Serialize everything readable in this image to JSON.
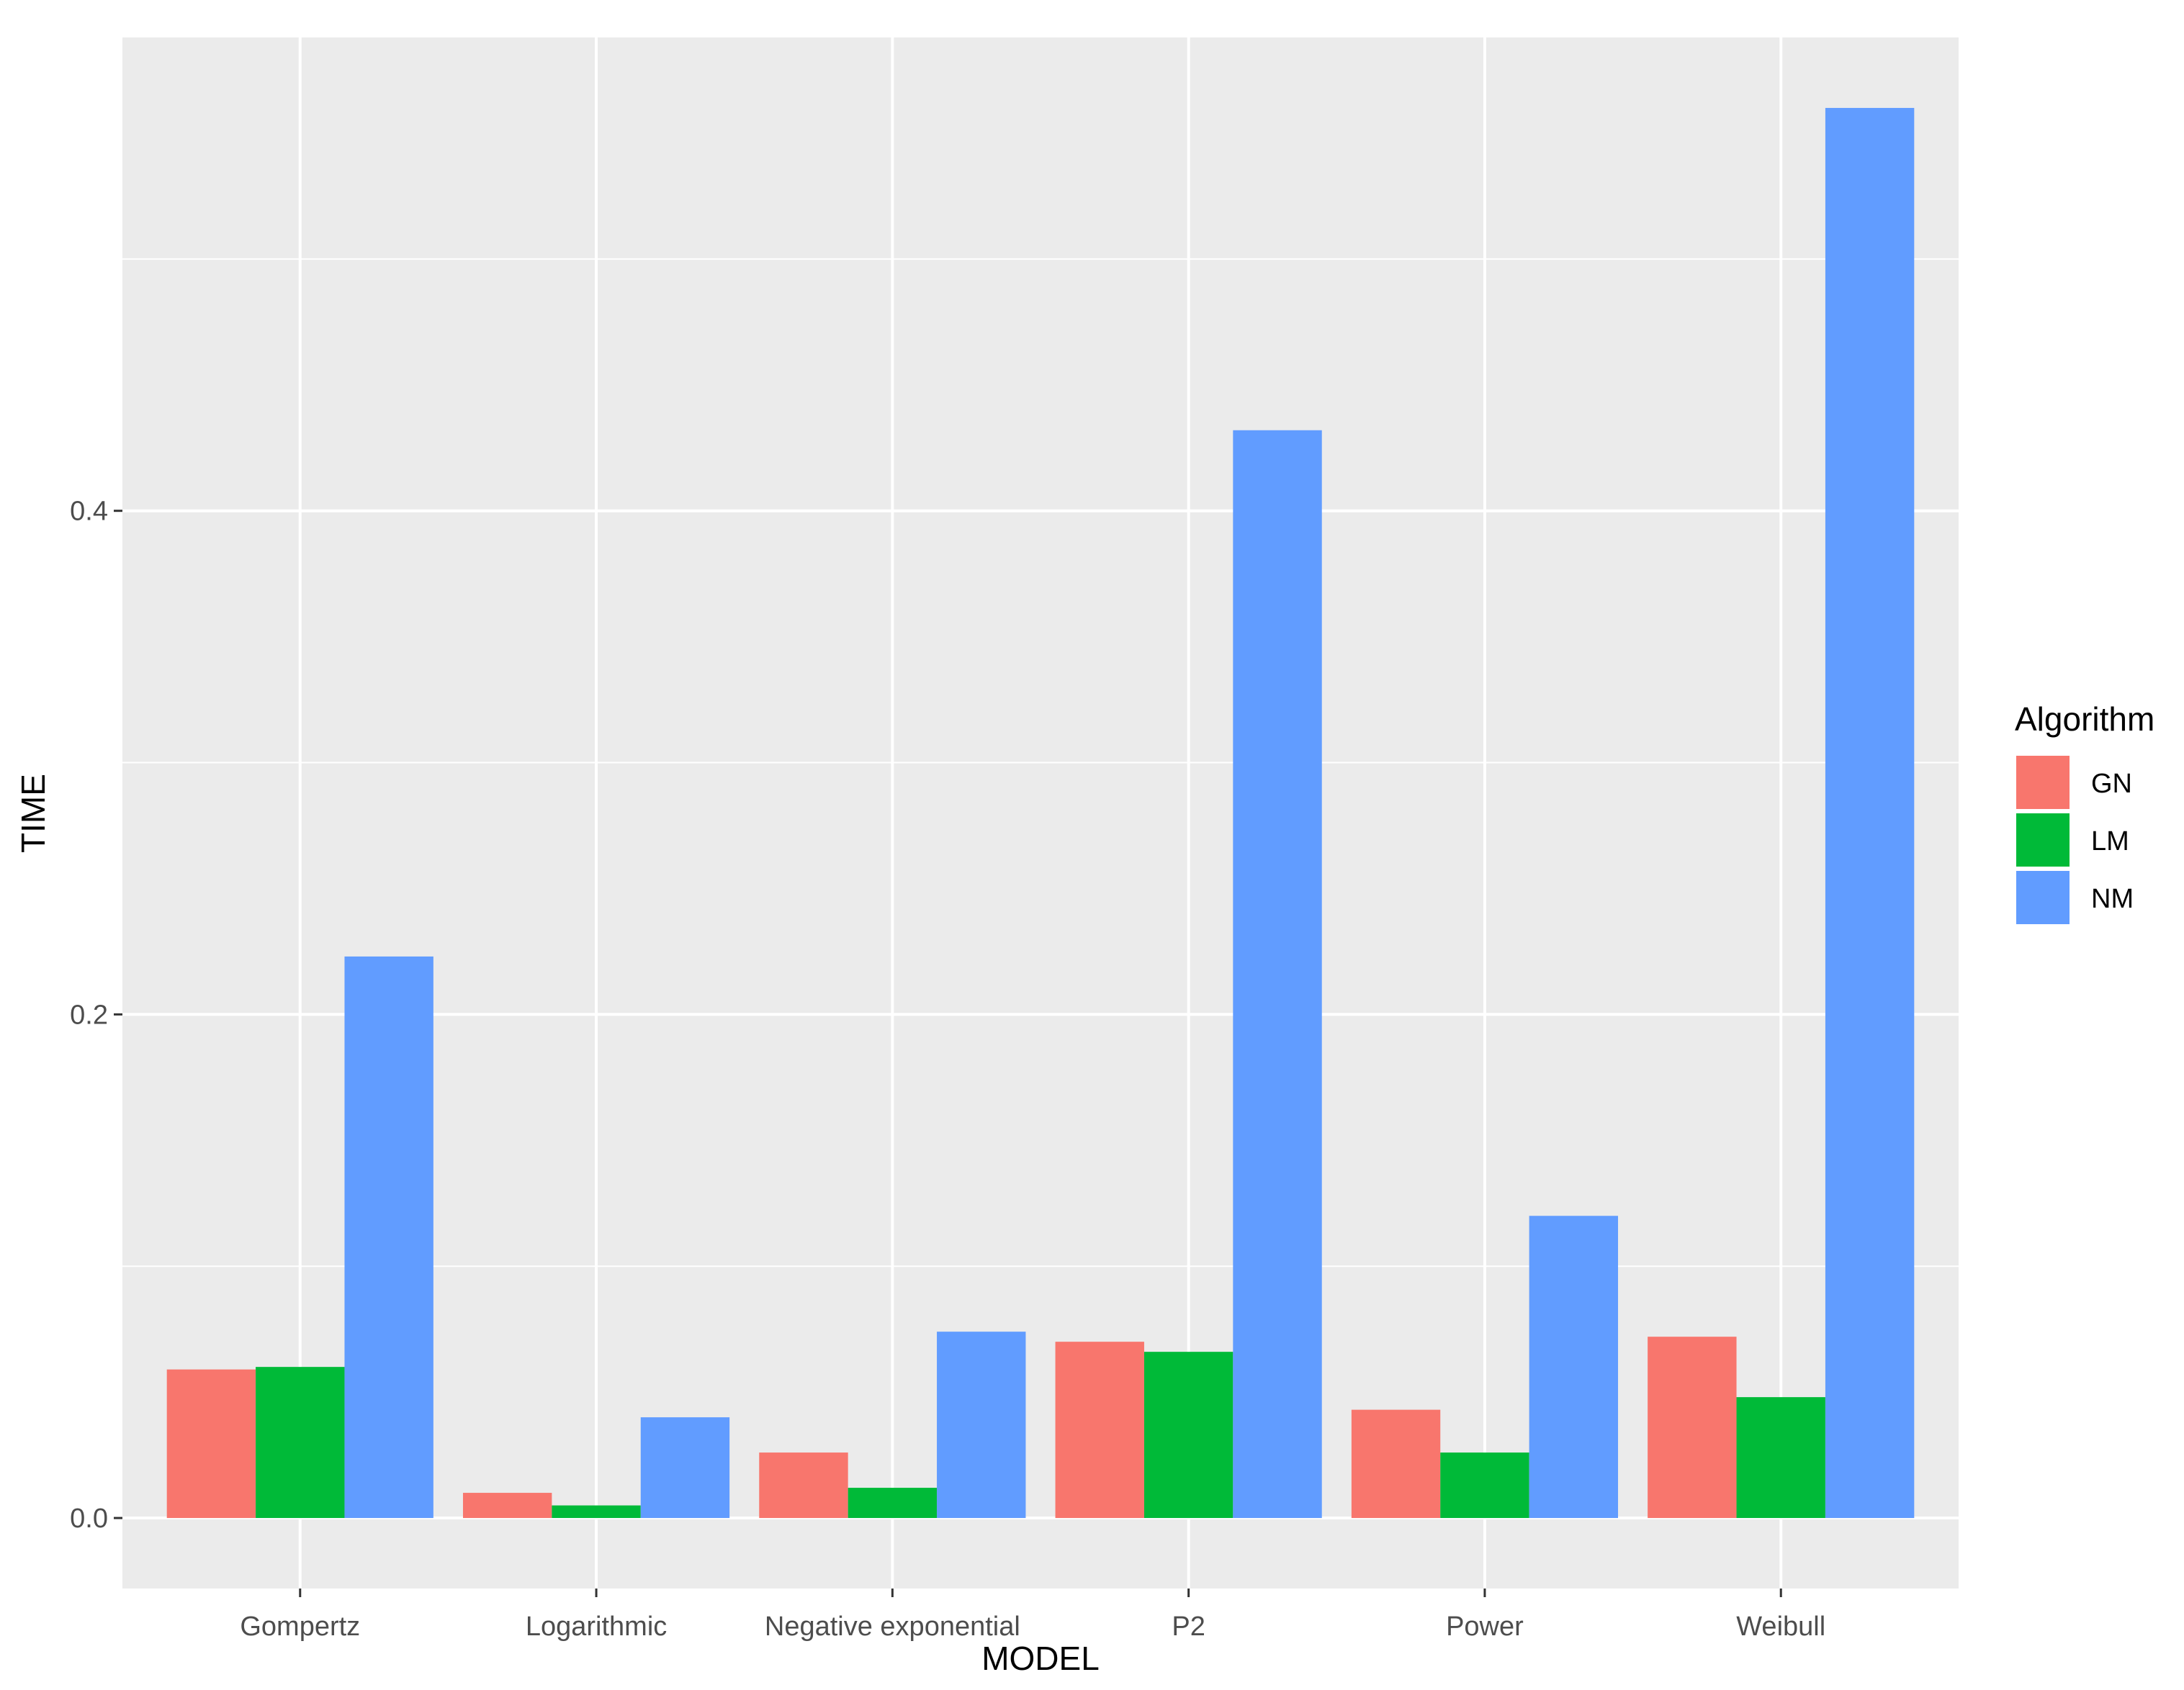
{
  "chart_data": {
    "type": "bar",
    "title": "",
    "xlabel": "MODEL",
    "ylabel": "TIME",
    "categories": [
      "Gompertz",
      "Logarithmic",
      "Negative exponential",
      "P2",
      "Power",
      "Weibull"
    ],
    "series": [
      {
        "name": "GN",
        "color": "#F8766D",
        "values": [
          0.059,
          0.01,
          0.026,
          0.07,
          0.043,
          0.072
        ]
      },
      {
        "name": "LM",
        "color": "#00BA38",
        "values": [
          0.06,
          0.005,
          0.012,
          0.066,
          0.026,
          0.048
        ]
      },
      {
        "name": "NM",
        "color": "#619CFF",
        "values": [
          0.223,
          0.04,
          0.074,
          0.432,
          0.12,
          0.56
        ]
      }
    ],
    "ylim": [
      -0.028,
      0.588
    ],
    "yticks": [
      0.0,
      0.2,
      0.4
    ],
    "ytick_labels": [
      "0.0",
      "0.2",
      "0.4"
    ],
    "grid": true,
    "legend": {
      "title": "Algorithm",
      "position": "right"
    },
    "colors": {
      "panel_background": "#EBEBEB",
      "grid": "#FFFFFF"
    }
  }
}
